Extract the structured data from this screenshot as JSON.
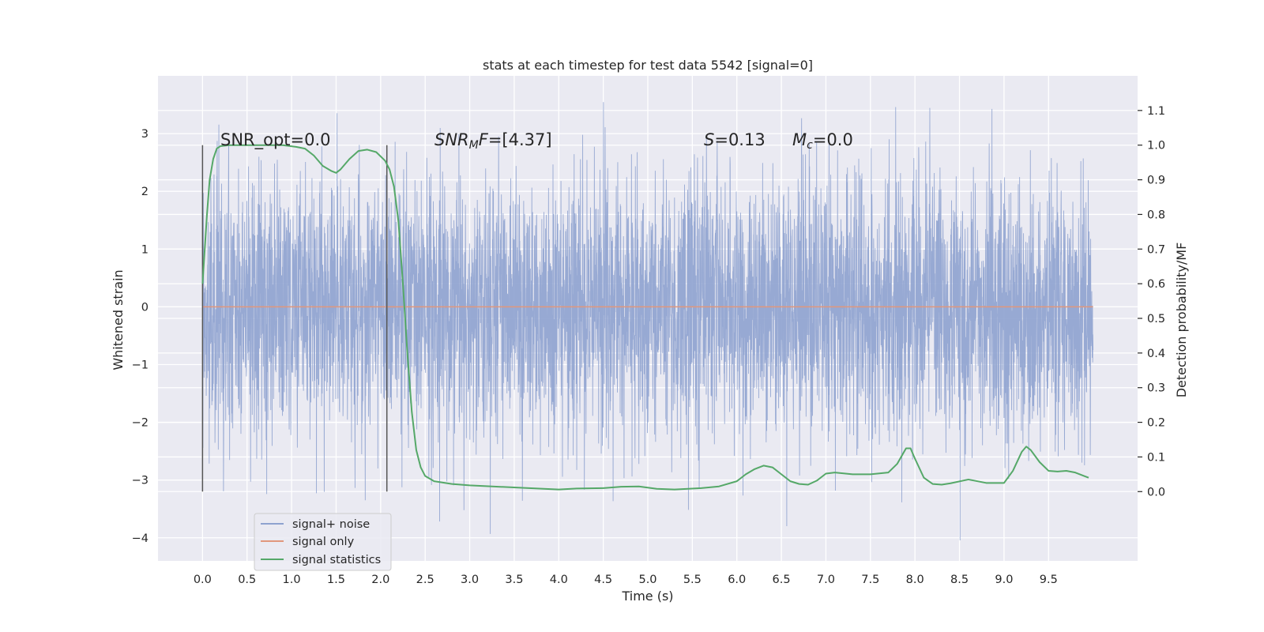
{
  "chart_data": {
    "type": "line",
    "title": "stats at each timestep for test data 5542 [signal=0]",
    "xlabel": "Time (s)",
    "ylabel": "Whitened strain",
    "y2label": "Detection probability/MF",
    "xlim": [
      -0.5,
      10.5
    ],
    "ylim": [
      -4.4,
      4.0
    ],
    "y2lim": [
      -0.2,
      1.2
    ],
    "xticks": [
      0.0,
      0.5,
      1.0,
      1.5,
      2.0,
      2.5,
      3.0,
      3.5,
      4.0,
      4.5,
      5.0,
      5.5,
      6.0,
      6.5,
      7.0,
      7.5,
      8.0,
      8.5,
      9.0,
      9.5
    ],
    "xtick_labels": [
      "0.0",
      "0.5",
      "1.0",
      "1.5",
      "2.0",
      "2.5",
      "3.0",
      "3.5",
      "4.0",
      "4.5",
      "5.0",
      "5.5",
      "6.0",
      "6.5",
      "7.0",
      "7.5",
      "8.0",
      "8.5",
      "9.0",
      "9.5"
    ],
    "yticks": [
      3,
      2,
      1,
      0,
      -1,
      -2,
      -3,
      -4
    ],
    "ytick_labels": [
      "3",
      "2",
      "1",
      "0",
      "−1",
      "−2",
      "−3",
      "−4"
    ],
    "y2ticks": [
      1.1,
      1.0,
      0.9,
      0.8,
      0.7,
      0.6,
      0.5,
      0.4,
      0.3,
      0.2,
      0.1,
      0.0
    ],
    "y2tick_labels": [
      "1.1",
      "1.0",
      "0.9",
      "0.8",
      "0.7",
      "0.6",
      "0.5",
      "0.4",
      "0.3",
      "0.2",
      "0.1",
      "0.0"
    ],
    "grid": true,
    "legend_position": "bottom-left",
    "annotations": {
      "snr_opt": "SNR_opt=0.0",
      "snr_mf_var": "SNR",
      "snr_mf_sub": "M",
      "snr_mf_var2": "F",
      "snr_mf_val": "=[4.37]",
      "s_var": "S",
      "s_val": "=0.13",
      "mc_var": "M",
      "mc_sub": "c",
      "mc_val": "=0.0"
    },
    "markers_x": [
      0.0,
      2.07
    ],
    "series": [
      {
        "name": "signal+ noise",
        "color": "#8ea2cf",
        "axis": "left",
        "kind": "noise",
        "x_range": [
          0.0,
          10.0
        ],
        "approx_range": [
          -4.05,
          3.6
        ]
      },
      {
        "name": "signal only",
        "color": "#e1977c",
        "axis": "left",
        "kind": "line",
        "x": [
          0.0,
          10.0
        ],
        "values": [
          0.0,
          0.0
        ]
      },
      {
        "name": "signal statistics",
        "color": "#55a868",
        "axis": "right",
        "kind": "line",
        "x": [
          0.0,
          0.05,
          0.08,
          0.12,
          0.16,
          0.2,
          0.3,
          0.5,
          0.7,
          0.9,
          1.05,
          1.15,
          1.25,
          1.35,
          1.45,
          1.5,
          1.55,
          1.65,
          1.75,
          1.85,
          1.95,
          2.05,
          2.1,
          2.15,
          2.2,
          2.25,
          2.3,
          2.35,
          2.4,
          2.45,
          2.5,
          2.6,
          2.8,
          3.0,
          3.5,
          4.0,
          4.2,
          4.5,
          4.7,
          4.9,
          5.1,
          5.3,
          5.6,
          5.8,
          6.0,
          6.1,
          6.2,
          6.3,
          6.4,
          6.5,
          6.6,
          6.7,
          6.8,
          6.9,
          7.0,
          7.1,
          7.3,
          7.5,
          7.7,
          7.8,
          7.9,
          7.95,
          8.0,
          8.1,
          8.2,
          8.3,
          8.4,
          8.6,
          8.8,
          9.0,
          9.1,
          9.2,
          9.25,
          9.3,
          9.4,
          9.5,
          9.6,
          9.7,
          9.8,
          9.9,
          9.95
        ],
        "values": [
          0.6,
          0.8,
          0.9,
          0.96,
          0.99,
          0.997,
          1.0,
          1.0,
          1.0,
          1.0,
          0.995,
          0.99,
          0.97,
          0.94,
          0.925,
          0.92,
          0.93,
          0.96,
          0.983,
          0.987,
          0.98,
          0.955,
          0.93,
          0.88,
          0.78,
          0.6,
          0.4,
          0.23,
          0.12,
          0.07,
          0.045,
          0.03,
          0.022,
          0.018,
          0.012,
          0.006,
          0.009,
          0.01,
          0.014,
          0.015,
          0.008,
          0.006,
          0.01,
          0.015,
          0.03,
          0.05,
          0.065,
          0.075,
          0.07,
          0.05,
          0.03,
          0.022,
          0.02,
          0.032,
          0.052,
          0.055,
          0.05,
          0.05,
          0.055,
          0.08,
          0.125,
          0.125,
          0.095,
          0.04,
          0.022,
          0.02,
          0.024,
          0.035,
          0.025,
          0.025,
          0.06,
          0.115,
          0.13,
          0.12,
          0.085,
          0.06,
          0.058,
          0.06,
          0.055,
          0.045,
          0.04
        ]
      }
    ]
  }
}
